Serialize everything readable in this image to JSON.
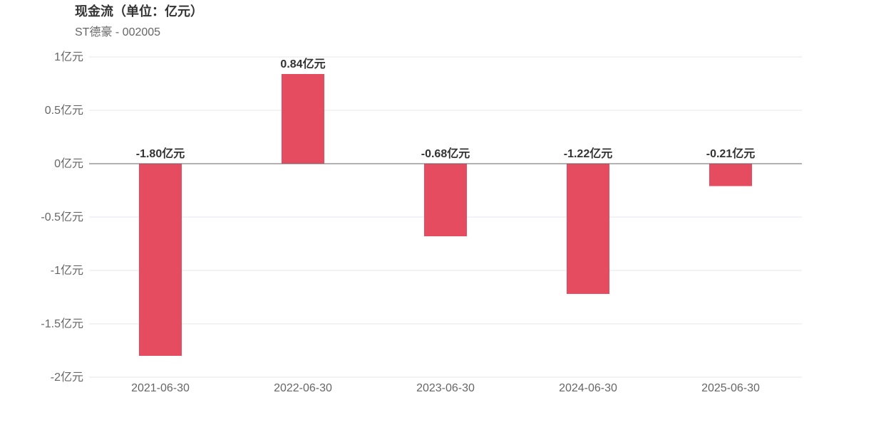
{
  "title": "现金流（单位：亿元）",
  "subtitle": "ST德豪 - 002005",
  "colors": {
    "bar": "#e64c60",
    "grid": "#e6e6ef",
    "zero_line": "#666666",
    "tick_text": "#666666",
    "label_text": "#333333"
  },
  "chart_data": {
    "type": "bar",
    "title": "现金流（单位：亿元）",
    "subtitle": "ST德豪 - 002005",
    "xlabel": "",
    "ylabel": "",
    "categories": [
      "2021-06-30",
      "2022-06-30",
      "2023-06-30",
      "2024-06-30",
      "2025-06-30"
    ],
    "values": [
      -1.8,
      0.84,
      -0.68,
      -1.22,
      -0.21
    ],
    "data_labels": [
      "-1.80亿元",
      "0.84亿元",
      "-0.68亿元",
      "-1.22亿元",
      "-0.21亿元"
    ],
    "ylim": [
      -2,
      1
    ],
    "yticks": [
      1,
      0.5,
      0,
      -0.5,
      -1,
      -1.5,
      -2
    ],
    "ytick_labels": [
      "1亿元",
      "0.5亿元",
      "0亿元",
      "-0.5亿元",
      "-1亿元",
      "-1.5亿元",
      "-2亿元"
    ],
    "grid": true,
    "legend": "none"
  }
}
